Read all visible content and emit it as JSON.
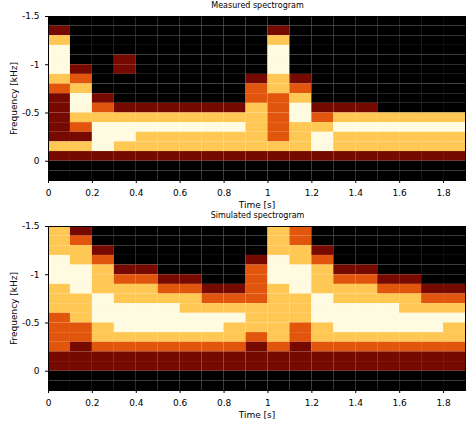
{
  "chart_data": [
    {
      "type": "heatmap",
      "title": "Measured spectrogram",
      "x_label": "Time [s]",
      "y_label": "Frequency [kHz]",
      "xlim": [
        0,
        1.9
      ],
      "ylim": [
        -1.5,
        0.2
      ],
      "xticks": [
        0,
        0.2,
        0.4,
        0.6,
        0.8,
        1,
        1.2,
        1.4,
        1.6,
        1.8
      ],
      "yticks": [
        -1.5,
        -1,
        -0.5,
        0
      ],
      "x_bins": [
        0,
        0.1,
        0.2,
        0.3,
        0.4,
        0.5,
        0.6,
        0.7,
        0.8,
        0.9,
        1,
        1.1,
        1.2,
        1.3,
        1.4,
        1.5,
        1.6,
        1.7,
        1.8,
        1.9
      ],
      "y_bins": [
        -1.5,
        -1.4,
        -1.3,
        -1.2,
        -1.1,
        -1,
        -0.9,
        -0.8,
        -0.7,
        -0.6,
        -0.5,
        -0.4,
        -0.3,
        -0.2,
        -0.1,
        0,
        0.1,
        0.2
      ],
      "cells": [
        [
          0,
          0,
          0,
          0,
          0,
          0,
          0,
          0,
          0,
          0,
          0,
          0,
          0,
          0,
          0,
          0,
          0,
          0,
          0
        ],
        [
          1,
          0,
          0,
          0,
          0,
          0,
          0,
          0,
          0,
          0,
          1,
          0,
          0,
          0,
          0,
          0,
          0,
          0,
          0
        ],
        [
          3,
          0,
          0,
          0,
          0,
          0,
          0,
          0,
          0,
          0,
          3,
          0,
          0,
          0,
          0,
          0,
          0,
          0,
          0
        ],
        [
          4,
          0,
          0,
          0,
          0,
          0,
          0,
          0,
          0,
          0,
          4,
          0,
          0,
          0,
          0,
          0,
          0,
          0,
          0
        ],
        [
          4,
          0,
          0,
          1,
          0,
          0,
          0,
          0,
          0,
          0,
          4,
          0,
          0,
          0,
          0,
          0,
          0,
          0,
          0
        ],
        [
          4,
          1,
          0,
          1,
          0,
          0,
          0,
          0,
          0,
          0,
          4,
          0,
          0,
          0,
          0,
          0,
          0,
          0,
          0
        ],
        [
          3,
          2,
          0,
          0,
          0,
          0,
          0,
          0,
          0,
          1,
          3,
          1,
          0,
          0,
          0,
          0,
          0,
          0,
          0
        ],
        [
          2,
          3,
          0,
          0,
          0,
          0,
          0,
          0,
          0,
          2,
          3,
          2,
          0,
          0,
          0,
          0,
          0,
          0,
          0
        ],
        [
          1,
          4,
          1,
          0,
          0,
          0,
          0,
          0,
          0,
          2,
          2,
          3,
          0,
          0,
          0,
          0,
          0,
          0,
          0
        ],
        [
          1,
          4,
          2,
          1,
          1,
          1,
          1,
          1,
          1,
          3,
          2,
          4,
          1,
          1,
          1,
          0,
          0,
          0,
          0
        ],
        [
          1,
          3,
          3,
          3,
          3,
          3,
          3,
          3,
          3,
          3,
          2,
          4,
          2,
          3,
          3,
          3,
          3,
          3,
          3
        ],
        [
          1,
          2,
          4,
          4,
          4,
          4,
          4,
          4,
          4,
          3,
          2,
          3,
          3,
          4,
          4,
          4,
          4,
          4,
          4
        ],
        [
          1,
          1,
          4,
          4,
          3,
          3,
          3,
          3,
          3,
          3,
          2,
          3,
          4,
          3,
          3,
          3,
          3,
          3,
          3
        ],
        [
          3,
          3,
          4,
          3,
          3,
          3,
          3,
          3,
          3,
          3,
          3,
          3,
          4,
          3,
          3,
          3,
          3,
          3,
          3
        ],
        [
          1,
          1,
          1,
          1,
          1,
          1,
          1,
          1,
          1,
          1,
          1,
          1,
          1,
          1,
          1,
          1,
          1,
          1,
          1
        ],
        [
          0,
          0,
          0,
          0,
          0,
          0,
          0,
          0,
          0,
          0,
          0,
          0,
          0,
          0,
          0,
          0,
          0,
          0,
          0
        ],
        [
          0,
          0,
          0,
          0,
          0,
          0,
          0,
          0,
          0,
          0,
          0,
          0,
          0,
          0,
          0,
          0,
          0,
          0,
          0
        ]
      ]
    },
    {
      "type": "heatmap",
      "title": "Simulated spectrogram",
      "x_label": "Time [s]",
      "y_label": "Frequency [kHz]",
      "xlim": [
        0,
        1.9
      ],
      "ylim": [
        -1.5,
        0.2
      ],
      "xticks": [
        0,
        0.2,
        0.4,
        0.6,
        0.8,
        1,
        1.2,
        1.4,
        1.6,
        1.8
      ],
      "yticks": [
        -1.5,
        -1,
        -0.5,
        0
      ],
      "x_bins": [
        0,
        0.1,
        0.2,
        0.3,
        0.4,
        0.5,
        0.6,
        0.7,
        0.8,
        0.9,
        1,
        1.1,
        1.2,
        1.3,
        1.4,
        1.5,
        1.6,
        1.7,
        1.8,
        1.9
      ],
      "y_bins": [
        -1.5,
        -1.4,
        -1.3,
        -1.2,
        -1.1,
        -1,
        -0.9,
        -0.8,
        -0.7,
        -0.6,
        -0.5,
        -0.4,
        -0.3,
        -0.2,
        -0.1,
        0,
        0.1,
        0.2
      ],
      "cells": [
        [
          3,
          1,
          0,
          0,
          0,
          0,
          0,
          0,
          0,
          0,
          3,
          2,
          0,
          0,
          0,
          0,
          0,
          0,
          0
        ],
        [
          3,
          2,
          0,
          0,
          0,
          0,
          0,
          0,
          0,
          0,
          3,
          2,
          0,
          0,
          0,
          0,
          0,
          0,
          0
        ],
        [
          3,
          3,
          1,
          0,
          0,
          0,
          0,
          0,
          0,
          0,
          3,
          3,
          1,
          0,
          0,
          0,
          0,
          0,
          0
        ],
        [
          4,
          3,
          2,
          0,
          0,
          0,
          0,
          0,
          0,
          1,
          4,
          3,
          2,
          0,
          0,
          0,
          0,
          0,
          0
        ],
        [
          4,
          4,
          3,
          1,
          1,
          0,
          0,
          0,
          0,
          2,
          4,
          4,
          3,
          1,
          1,
          0,
          0,
          0,
          0
        ],
        [
          4,
          4,
          3,
          2,
          2,
          1,
          1,
          0,
          0,
          2,
          4,
          4,
          3,
          2,
          2,
          1,
          1,
          0,
          0
        ],
        [
          3,
          4,
          3,
          3,
          3,
          2,
          2,
          1,
          1,
          2,
          3,
          4,
          3,
          3,
          3,
          2,
          2,
          1,
          1
        ],
        [
          3,
          3,
          4,
          3,
          3,
          3,
          3,
          2,
          2,
          2,
          3,
          3,
          4,
          3,
          3,
          3,
          3,
          2,
          2
        ],
        [
          3,
          3,
          4,
          4,
          4,
          4,
          3,
          3,
          3,
          3,
          3,
          3,
          4,
          4,
          4,
          4,
          3,
          3,
          3
        ],
        [
          2,
          3,
          4,
          4,
          4,
          4,
          4,
          4,
          4,
          3,
          3,
          3,
          4,
          4,
          4,
          4,
          4,
          4,
          4
        ],
        [
          2,
          2,
          3,
          4,
          4,
          4,
          4,
          4,
          3,
          3,
          3,
          2,
          3,
          4,
          4,
          4,
          4,
          4,
          3
        ],
        [
          2,
          2,
          3,
          3,
          3,
          3,
          3,
          3,
          3,
          2,
          3,
          2,
          3,
          3,
          3,
          3,
          3,
          3,
          3
        ],
        [
          2,
          1,
          2,
          2,
          2,
          2,
          2,
          2,
          2,
          1,
          2,
          1,
          2,
          2,
          2,
          2,
          2,
          2,
          2
        ],
        [
          1,
          1,
          1,
          1,
          1,
          1,
          1,
          1,
          1,
          1,
          1,
          1,
          1,
          1,
          1,
          1,
          1,
          1,
          1
        ],
        [
          1,
          1,
          1,
          1,
          1,
          1,
          1,
          1,
          1,
          1,
          1,
          1,
          1,
          1,
          1,
          1,
          1,
          1,
          1
        ],
        [
          0,
          0,
          0,
          0,
          0,
          0,
          0,
          0,
          0,
          0,
          0,
          0,
          0,
          0,
          0,
          0,
          0,
          0,
          0
        ],
        [
          0,
          0,
          0,
          0,
          0,
          0,
          0,
          0,
          0,
          0,
          0,
          0,
          0,
          0,
          0,
          0,
          0,
          0,
          0
        ]
      ]
    }
  ]
}
